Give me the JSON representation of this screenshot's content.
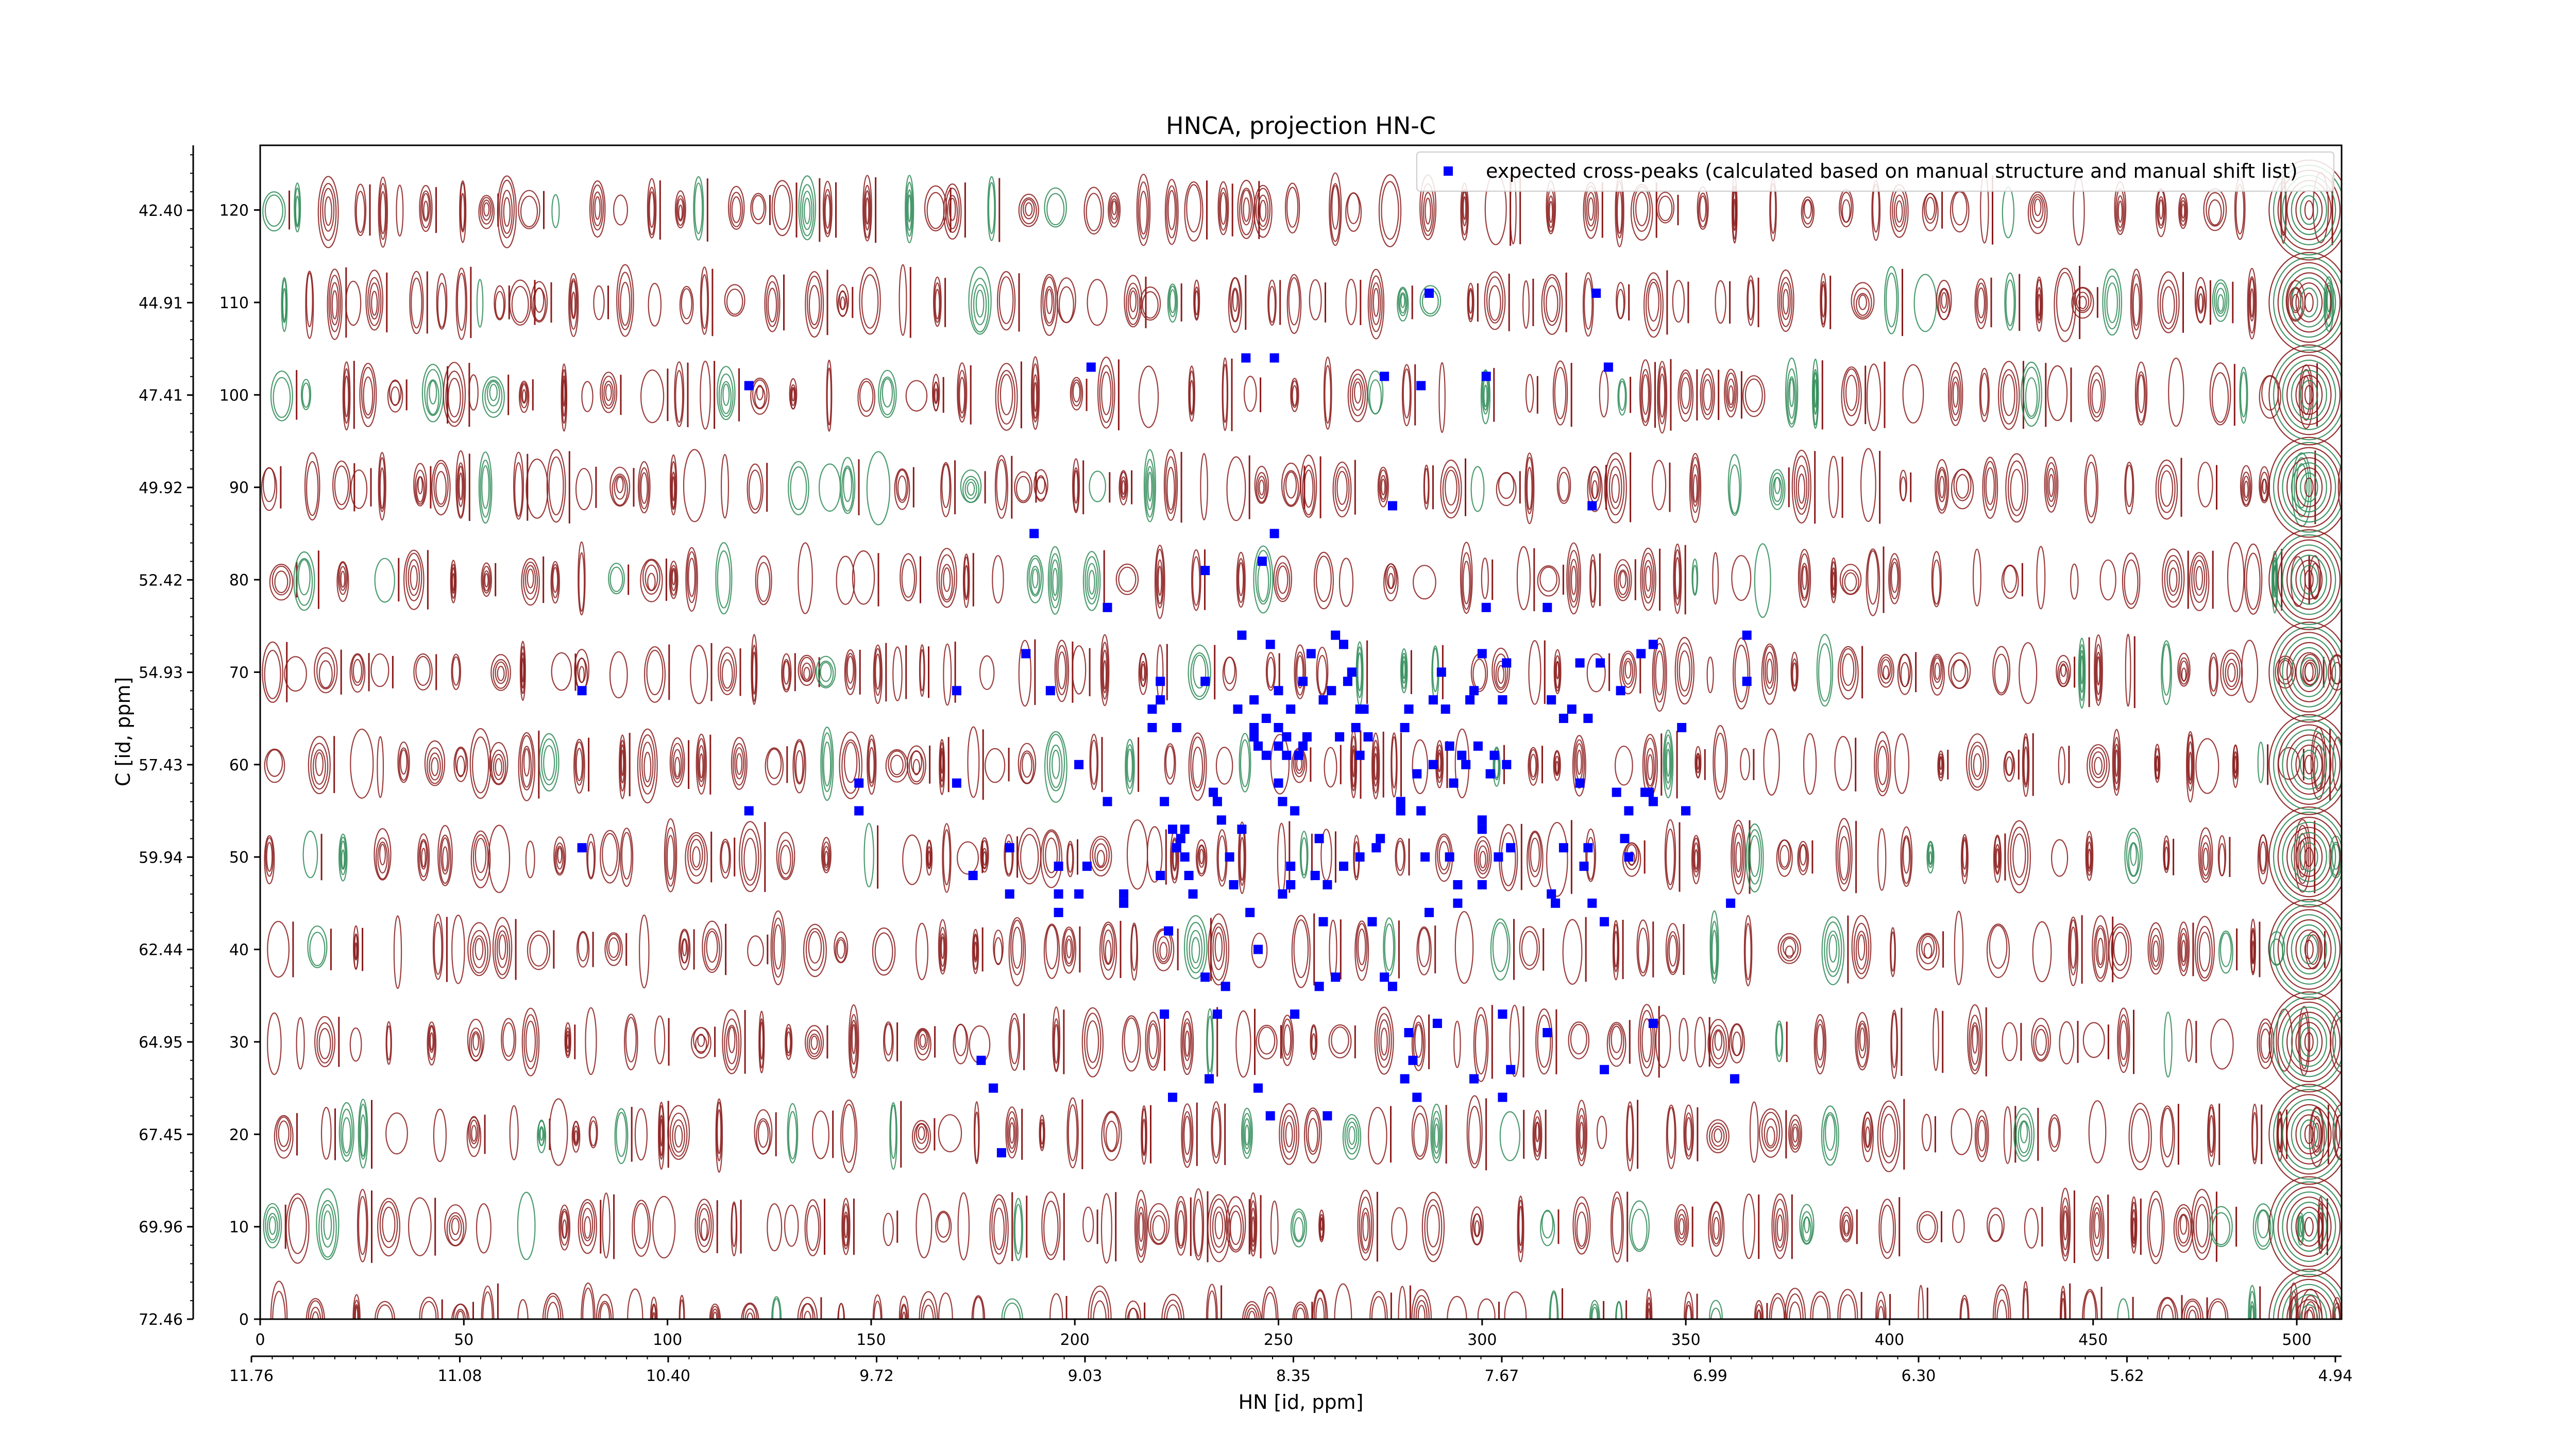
{
  "chart_data": {
    "type": "scatter",
    "title": "HNCA, projection HN-C",
    "xlabel": "HN [id, ppm]",
    "ylabel": "C [id, ppm]",
    "xlim": [
      0,
      511
    ],
    "ylim": [
      0,
      127
    ],
    "x_ticks": [
      "0",
      "50",
      "100",
      "150",
      "200",
      "250",
      "300",
      "350",
      "400",
      "450",
      "500"
    ],
    "x_tick_values": [
      0,
      50,
      100,
      150,
      200,
      250,
      300,
      350,
      400,
      450,
      500
    ],
    "y_ticks": [
      "0",
      "10",
      "20",
      "30",
      "40",
      "50",
      "60",
      "70",
      "80",
      "90",
      "100",
      "110",
      "120"
    ],
    "y_tick_values": [
      0,
      10,
      20,
      30,
      40,
      50,
      60,
      70,
      80,
      90,
      100,
      110,
      120
    ],
    "x2_ticks": [
      "11.76",
      "11.08",
      "10.40",
      "9.72",
      "9.03",
      "8.35",
      "7.67",
      "6.99",
      "6.30",
      "5.62",
      "4.94"
    ],
    "y2_ticks": [
      "72.46",
      "69.96",
      "67.45",
      "64.95",
      "62.44",
      "59.94",
      "57.43",
      "54.93",
      "52.42",
      "49.92",
      "47.41",
      "44.91",
      "42.40"
    ],
    "legend": {
      "position": "top-right",
      "entries": [
        "expected cross-peaks (calculated based on manual structure and manual shift list)"
      ]
    },
    "grid": false,
    "colors": {
      "peaks": "#0000ff",
      "contour_positive": "#8b1a1a",
      "contour_negative": "#2e8b57"
    },
    "series": [
      {
        "name": "expected cross-peaks (calculated based on manual structure and manual shift list)",
        "points": [
          [
            79,
            68
          ],
          [
            79,
            51
          ],
          [
            120,
            101
          ],
          [
            120,
            55
          ],
          [
            147,
            58
          ],
          [
            147,
            55
          ],
          [
            171,
            68
          ],
          [
            171,
            58
          ],
          [
            175,
            48
          ],
          [
            177,
            28
          ],
          [
            180,
            25
          ],
          [
            182,
            18
          ],
          [
            184,
            51
          ],
          [
            184,
            46
          ],
          [
            188,
            72
          ],
          [
            190,
            85
          ],
          [
            194,
            68
          ],
          [
            196,
            49
          ],
          [
            196,
            46
          ],
          [
            196,
            44
          ],
          [
            201,
            46
          ],
          [
            201,
            60
          ],
          [
            203,
            49
          ],
          [
            204,
            103
          ],
          [
            208,
            77
          ],
          [
            208,
            56
          ],
          [
            212,
            45
          ],
          [
            212,
            46
          ],
          [
            219,
            64
          ],
          [
            219,
            66
          ],
          [
            221,
            67
          ],
          [
            221,
            69
          ],
          [
            221,
            48
          ],
          [
            222,
            56
          ],
          [
            222,
            33
          ],
          [
            223,
            42
          ],
          [
            224,
            24
          ],
          [
            224,
            53
          ],
          [
            225,
            64
          ],
          [
            225,
            51
          ],
          [
            226,
            52
          ],
          [
            227,
            53
          ],
          [
            227,
            50
          ],
          [
            228,
            48
          ],
          [
            229,
            46
          ],
          [
            232,
            81
          ],
          [
            232,
            69
          ],
          [
            232,
            37
          ],
          [
            233,
            26
          ],
          [
            234,
            57
          ],
          [
            235,
            56
          ],
          [
            235,
            33
          ],
          [
            236,
            54
          ],
          [
            237,
            36
          ],
          [
            238,
            50
          ],
          [
            239,
            47
          ],
          [
            240,
            66
          ],
          [
            241,
            74
          ],
          [
            241,
            53
          ],
          [
            242,
            104
          ],
          [
            243,
            44
          ],
          [
            244,
            67
          ],
          [
            244,
            64
          ],
          [
            244,
            63
          ],
          [
            245,
            62
          ],
          [
            245,
            40
          ],
          [
            245,
            25
          ],
          [
            246,
            82
          ],
          [
            247,
            65
          ],
          [
            247,
            61
          ],
          [
            248,
            73
          ],
          [
            248,
            22
          ],
          [
            249,
            85
          ],
          [
            249,
            104
          ],
          [
            250,
            62
          ],
          [
            250,
            64
          ],
          [
            250,
            58
          ],
          [
            250,
            68
          ],
          [
            251,
            56
          ],
          [
            251,
            46
          ],
          [
            252,
            63
          ],
          [
            252,
            61
          ],
          [
            253,
            66
          ],
          [
            253,
            49
          ],
          [
            254,
            55
          ],
          [
            254,
            33
          ],
          [
            255,
            61
          ],
          [
            256,
            69
          ],
          [
            256,
            62
          ],
          [
            257,
            63
          ],
          [
            258,
            72
          ],
          [
            260,
            52
          ],
          [
            260,
            36
          ],
          [
            261,
            67
          ],
          [
            261,
            43
          ],
          [
            262,
            47
          ],
          [
            262,
            22
          ],
          [
            263,
            68
          ],
          [
            264,
            74
          ],
          [
            264,
            37
          ],
          [
            265,
            63
          ],
          [
            266,
            73
          ],
          [
            267,
            69
          ],
          [
            268,
            70
          ],
          [
            269,
            64
          ],
          [
            270,
            66
          ],
          [
            270,
            61
          ],
          [
            271,
            66
          ],
          [
            272,
            63
          ],
          [
            273,
            43
          ],
          [
            274,
            51
          ],
          [
            275,
            52
          ],
          [
            276,
            37
          ],
          [
            276,
            102
          ],
          [
            278,
            88
          ],
          [
            278,
            36
          ],
          [
            280,
            56
          ],
          [
            280,
            55
          ],
          [
            281,
            64
          ],
          [
            281,
            26
          ],
          [
            282,
            66
          ],
          [
            282,
            31
          ],
          [
            283,
            28
          ],
          [
            284,
            24
          ],
          [
            284,
            59
          ],
          [
            285,
            55
          ],
          [
            285,
            101
          ],
          [
            286,
            50
          ],
          [
            287,
            44
          ],
          [
            287,
            111
          ],
          [
            288,
            67
          ],
          [
            288,
            60
          ],
          [
            289,
            32
          ],
          [
            290,
            70
          ],
          [
            291,
            66
          ],
          [
            292,
            62
          ],
          [
            292,
            50
          ],
          [
            293,
            58
          ],
          [
            294,
            47
          ],
          [
            294,
            45
          ],
          [
            295,
            61
          ],
          [
            296,
            60
          ],
          [
            297,
            67
          ],
          [
            298,
            68
          ],
          [
            298,
            26
          ],
          [
            299,
            62
          ],
          [
            300,
            72
          ],
          [
            300,
            47
          ],
          [
            300,
            53
          ],
          [
            300,
            54
          ],
          [
            301,
            77
          ],
          [
            301,
            102
          ],
          [
            302,
            59
          ],
          [
            303,
            61
          ],
          [
            304,
            50
          ],
          [
            305,
            67
          ],
          [
            305,
            33
          ],
          [
            305,
            24
          ],
          [
            306,
            60
          ],
          [
            306,
            71
          ],
          [
            307,
            51
          ],
          [
            307,
            27
          ],
          [
            316,
            77
          ],
          [
            316,
            31
          ],
          [
            317,
            46
          ],
          [
            317,
            67
          ],
          [
            318,
            45
          ],
          [
            320,
            51
          ],
          [
            320,
            65
          ],
          [
            322,
            66
          ],
          [
            324,
            71
          ],
          [
            324,
            58
          ],
          [
            325,
            49
          ],
          [
            326,
            51
          ],
          [
            326,
            65
          ],
          [
            327,
            88
          ],
          [
            327,
            45
          ],
          [
            328,
            111
          ],
          [
            329,
            71
          ],
          [
            330,
            27
          ],
          [
            330,
            43
          ],
          [
            331,
            103
          ],
          [
            333,
            57
          ],
          [
            334,
            68
          ],
          [
            335,
            52
          ],
          [
            336,
            50
          ],
          [
            336,
            55
          ],
          [
            339,
            72
          ],
          [
            340,
            57
          ],
          [
            341,
            57
          ],
          [
            342,
            73
          ],
          [
            342,
            32
          ],
          [
            342,
            56
          ],
          [
            349,
            64
          ],
          [
            350,
            55
          ],
          [
            350,
            55
          ],
          [
            361,
            45
          ],
          [
            362,
            26
          ],
          [
            365,
            69
          ],
          [
            365,
            74
          ],
          [
            253,
            47
          ],
          [
            259,
            48
          ],
          [
            266,
            49
          ],
          [
            270,
            50
          ]
        ]
      }
    ]
  }
}
